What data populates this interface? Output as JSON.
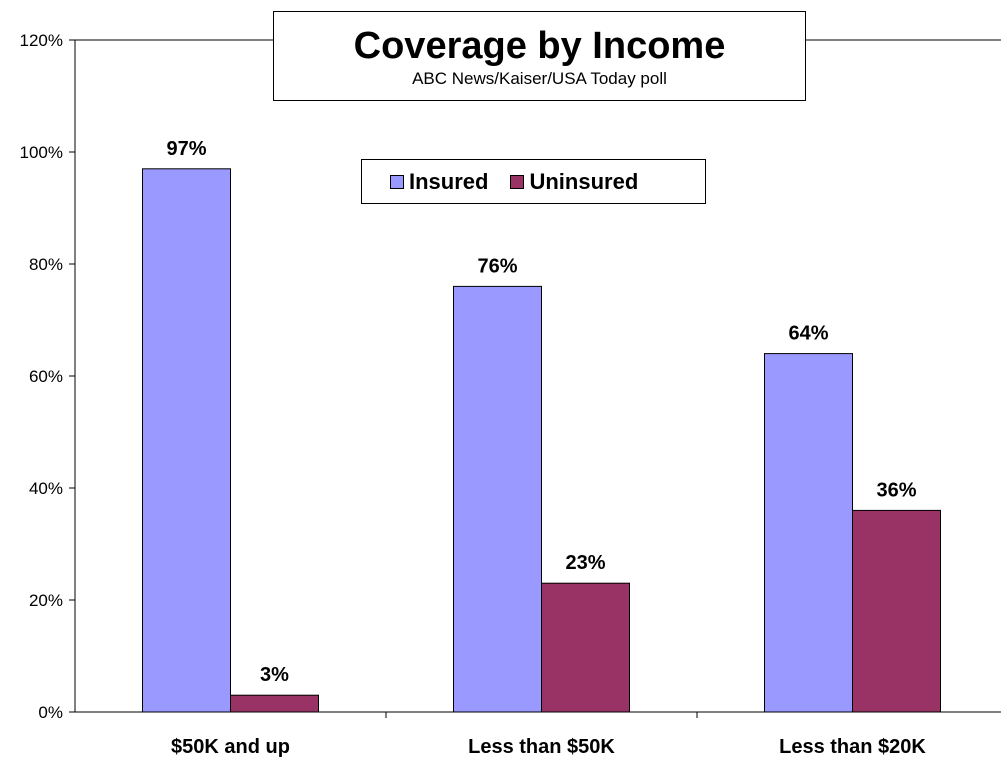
{
  "chart_data": {
    "type": "bar",
    "title": "Coverage by Income",
    "subtitle": "ABC News/Kaiser/USA Today poll",
    "categories": [
      "$50K and up",
      "Less than $50K",
      "Less than $20K"
    ],
    "series": [
      {
        "name": "Insured",
        "values": [
          97,
          76,
          64
        ],
        "labels": [
          "97%",
          "76%",
          "64%"
        ],
        "color": "#9999ff"
      },
      {
        "name": "Uninsured",
        "values": [
          3,
          23,
          36
        ],
        "labels": [
          "3%",
          "23%",
          "36%"
        ],
        "color": "#993366"
      }
    ],
    "ylim": [
      0,
      120
    ],
    "yticks": [
      "0%",
      "20%",
      "40%",
      "60%",
      "80%",
      "100%",
      "120%"
    ],
    "xlabel": "",
    "ylabel": "",
    "grid": false,
    "legend_position": "top-center"
  }
}
